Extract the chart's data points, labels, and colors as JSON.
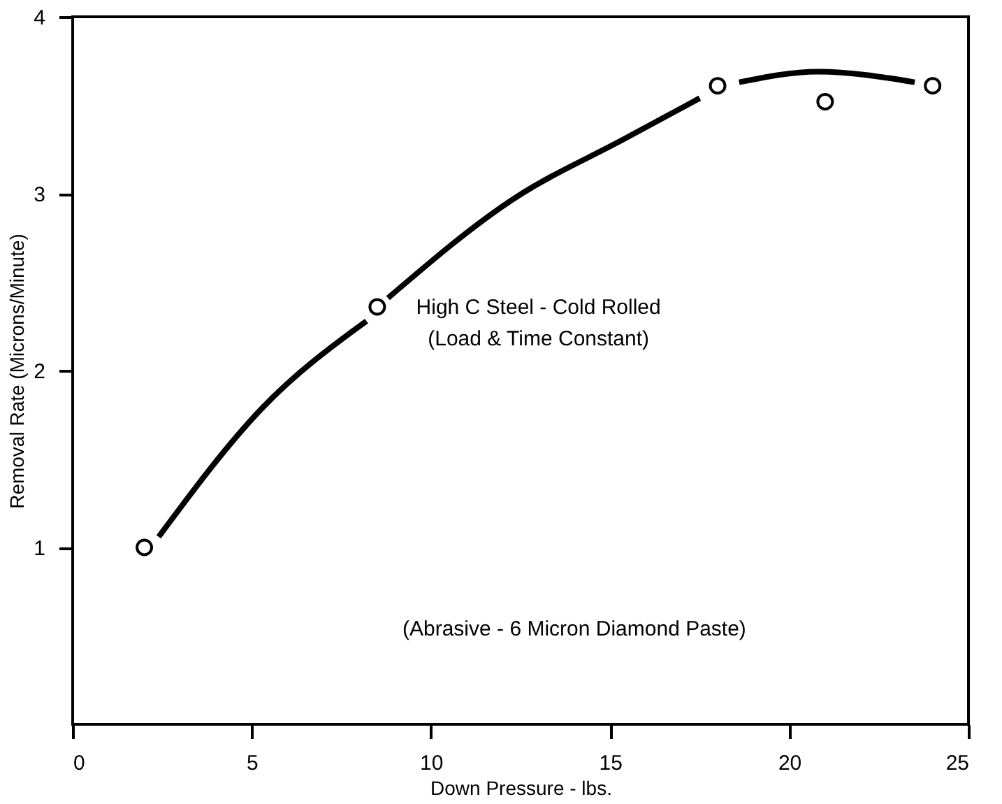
{
  "chart_data": {
    "type": "scatter",
    "xlabel": "Down Pressure - lbs.",
    "ylabel": "Removal Rate (Microns/Minute)",
    "xlim": [
      0,
      25
    ],
    "xticks": [
      0,
      5,
      10,
      15,
      20,
      25
    ],
    "ylim": [
      0,
      4
    ],
    "yticks": [
      1,
      2,
      3,
      4
    ],
    "grid": false,
    "series": [
      {
        "marker": "circle",
        "color": "#000000",
        "x": [
          2.0,
          8.5,
          18.0,
          21.0,
          24.0
        ],
        "values": [
          1.0,
          2.36,
          3.61,
          3.52,
          3.61
        ]
      },
      {
        "type": "line",
        "marker": "none",
        "color": "#000000",
        "line_style": "solid",
        "x": [
          2.4,
          5.3,
          8.2,
          null,
          8.8,
          12.3,
          15.4,
          17.5,
          null,
          18.6,
          20.8,
          23.5
        ],
        "values": [
          1.06,
          1.79,
          2.28,
          null,
          2.41,
          2.97,
          3.31,
          3.54,
          null,
          3.63,
          3.69,
          3.63
        ]
      }
    ],
    "annotations": [
      "High C Steel - Cold Rolled",
      "(Load & Time Constant)",
      "(Abrasive - 6 Micron Diamond Paste)"
    ]
  }
}
